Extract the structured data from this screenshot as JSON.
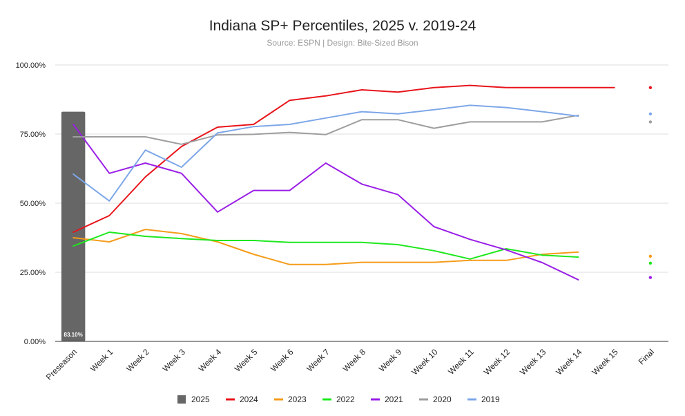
{
  "chart_data": {
    "type": "line",
    "title": "Indiana SP+ Percentiles, 2025 v. 2019-24",
    "subtitle": "Source: ESPN | Design: Bite-Sized Bison",
    "categories": [
      "Preseason",
      "Week 1",
      "Week 2",
      "Week 3",
      "Week 4",
      "Week 5",
      "Week 6",
      "Week 7",
      "Week 8",
      "Week 9",
      "Week 10",
      "Week 11",
      "Week 12",
      "Week 13",
      "Week 14",
      "Week 15",
      "Final"
    ],
    "ylim": [
      0,
      100
    ],
    "yticks": [
      0,
      25,
      50,
      75,
      100
    ],
    "ytick_labels": [
      "0.00%",
      "25.00%",
      "50.00%",
      "75.00%",
      "100.00%"
    ],
    "grid": true,
    "legend_position": "bottom",
    "bar_series": {
      "name": "2025",
      "color": "#666666",
      "values": [
        83.1
      ],
      "data_label": "83.10%"
    },
    "series": [
      {
        "name": "2024",
        "color": "#e8141b",
        "values": [
          39.5,
          45.5,
          59.5,
          70.5,
          77.5,
          78.5,
          87.2,
          88.8,
          91.0,
          90.2,
          91.8,
          92.6,
          91.8,
          91.8,
          91.8,
          91.8,
          91.8
        ]
      },
      {
        "name": "2023",
        "color": "#f59c1a",
        "values": [
          37.5,
          36.0,
          40.5,
          39.0,
          36.0,
          31.5,
          27.8,
          27.8,
          28.6,
          28.6,
          28.6,
          29.3,
          29.3,
          31.5,
          32.3,
          null,
          30.8
        ]
      },
      {
        "name": "2022",
        "color": "#1ee81e",
        "values": [
          34.5,
          39.5,
          38.0,
          37.2,
          36.5,
          36.5,
          35.8,
          35.8,
          35.8,
          35.0,
          32.8,
          29.8,
          33.5,
          31.2,
          30.5,
          null,
          28.3
        ]
      },
      {
        "name": "2021",
        "color": "#9a1ee6",
        "values": [
          78.5,
          60.8,
          64.5,
          60.8,
          46.8,
          54.6,
          54.6,
          64.5,
          56.9,
          53.1,
          41.5,
          36.9,
          33.1,
          28.5,
          22.3,
          null,
          23.1
        ]
      },
      {
        "name": "2020",
        "color": "#9e9e9e",
        "values": [
          74.0,
          74.0,
          74.0,
          71.3,
          74.7,
          74.9,
          75.6,
          74.8,
          80.2,
          80.2,
          77.1,
          79.4,
          79.4,
          79.4,
          81.8,
          null,
          79.4
        ]
      },
      {
        "name": "2019",
        "color": "#7da7e8",
        "values": [
          60.5,
          50.8,
          69.2,
          63.0,
          75.4,
          77.7,
          78.5,
          80.8,
          83.1,
          82.3,
          83.8,
          85.4,
          84.6,
          83.1,
          81.5,
          null,
          82.3
        ]
      }
    ]
  }
}
